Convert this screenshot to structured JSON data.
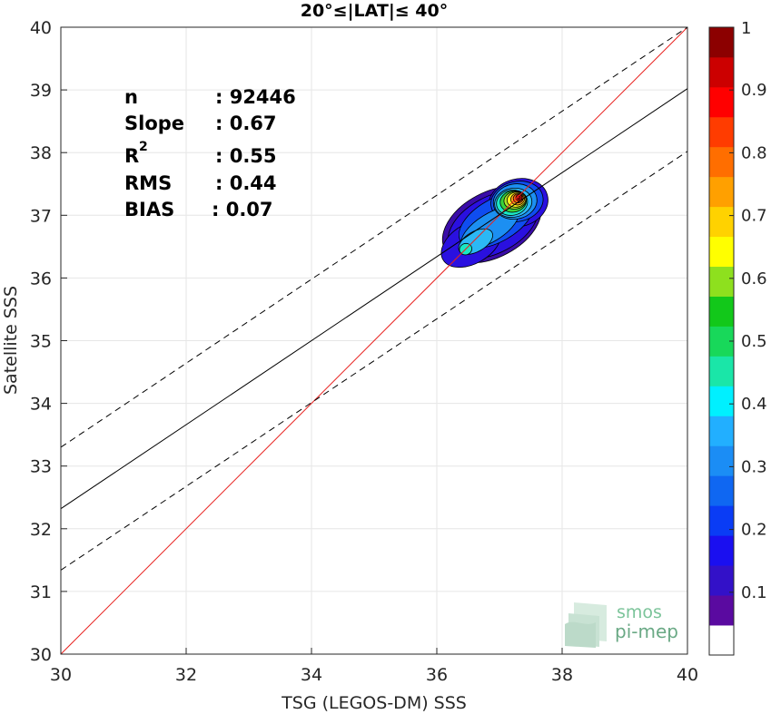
{
  "chart_data": {
    "type": "heatmap",
    "title": "20°≤|LAT|≤ 40°",
    "xlabel": "TSG (LEGOS-DM) SSS",
    "ylabel": "Satellite SSS",
    "xlim": [
      30,
      40
    ],
    "ylim": [
      30,
      40
    ],
    "xticks": [
      "30",
      "32",
      "34",
      "36",
      "38",
      "40"
    ],
    "yticks": [
      "30",
      "31",
      "32",
      "33",
      "34",
      "35",
      "36",
      "37",
      "38",
      "39",
      "40"
    ],
    "grid": true,
    "stats": [
      {
        "label": "n",
        "value": ": 92446"
      },
      {
        "label": "Slope",
        "value": ": 0.67"
      },
      {
        "label": "R",
        "sup": "2",
        "value": ": 0.55"
      },
      {
        "label": "RMS",
        "value": ": 0.44"
      },
      {
        "label": "BIAS",
        "value": ": 0.07"
      }
    ],
    "lines": [
      {
        "name": "one-to-one",
        "color": "#e8201e",
        "style": "solid",
        "points": [
          [
            30,
            30
          ],
          [
            40,
            40
          ]
        ]
      },
      {
        "name": "regression fit",
        "color": "#000000",
        "style": "solid",
        "points": [
          [
            30,
            32.32
          ],
          [
            40,
            39.02
          ]
        ]
      },
      {
        "name": "upper bound",
        "color": "#000000",
        "style": "dashed",
        "points": [
          [
            30,
            33.3
          ],
          [
            40,
            40
          ]
        ]
      },
      {
        "name": "lower bound",
        "color": "#000000",
        "style": "dashed",
        "points": [
          [
            30,
            31.34
          ],
          [
            40,
            38.02
          ]
        ]
      }
    ],
    "density_contours": [
      {
        "level": 0.05,
        "color": "#3a0ca8",
        "ellipses": [
          [
            36.88,
            36.85,
            0.85,
            0.52,
            28
          ]
        ]
      },
      {
        "level": 0.1,
        "color": "#2a10e0",
        "ellipses": [
          [
            36.9,
            36.85,
            0.78,
            0.45,
            28
          ],
          [
            36.55,
            36.55,
            0.52,
            0.32,
            30
          ],
          [
            37.3,
            37.2,
            0.48,
            0.38,
            15
          ]
        ]
      },
      {
        "level": 0.2,
        "color": "#0f4df0",
        "ellipses": [
          [
            36.95,
            36.92,
            0.66,
            0.34,
            30
          ],
          [
            37.28,
            37.22,
            0.42,
            0.32,
            12
          ]
        ]
      },
      {
        "level": 0.25,
        "color": "#1c8ff2",
        "ellipses": [
          [
            36.85,
            36.8,
            0.52,
            0.22,
            32
          ],
          [
            37.25,
            37.22,
            0.35,
            0.28,
            10
          ]
        ]
      },
      {
        "level": 0.35,
        "color": "#2cb8f5",
        "ellipses": [
          [
            36.62,
            36.58,
            0.3,
            0.16,
            30
          ],
          [
            37.22,
            37.2,
            0.3,
            0.23,
            10
          ]
        ]
      },
      {
        "level": 0.4,
        "color": "#1ae7c4",
        "ellipses": [
          [
            36.46,
            36.46,
            0.1,
            0.09,
            20
          ],
          [
            37.2,
            37.2,
            0.25,
            0.2,
            10
          ]
        ]
      },
      {
        "level": 0.55,
        "color": "#39d23a",
        "ellipses": [
          [
            37.22,
            37.22,
            0.21,
            0.17,
            10
          ]
        ]
      },
      {
        "level": 0.6,
        "color": "#a8e42a",
        "ellipses": [
          [
            37.25,
            37.24,
            0.18,
            0.14,
            10
          ]
        ]
      },
      {
        "level": 0.65,
        "color": "#fbf21c",
        "ellipses": [
          [
            37.27,
            37.25,
            0.15,
            0.12,
            10
          ]
        ]
      },
      {
        "level": 0.75,
        "color": "#ffa416",
        "ellipses": [
          [
            37.29,
            37.26,
            0.11,
            0.095,
            10
          ]
        ]
      },
      {
        "level": 0.8,
        "color": "#ff6410",
        "ellipses": [
          [
            37.3,
            37.27,
            0.08,
            0.072,
            10
          ]
        ]
      },
      {
        "level": 0.9,
        "color": "#e41010",
        "ellipses": [
          [
            37.31,
            37.28,
            0.05,
            0.05,
            10
          ]
        ]
      },
      {
        "level": 0.95,
        "color": "#b80a0a",
        "ellipses": [
          [
            37.31,
            37.28,
            0.022,
            0.025,
            10
          ]
        ]
      }
    ],
    "colorbar": {
      "min": 0,
      "max": 1,
      "ticks": [
        "0.1",
        "0.2",
        "0.3",
        "0.4",
        "0.5",
        "0.6",
        "0.7",
        "0.8",
        "0.9",
        "1"
      ],
      "tick_values": [
        0.1,
        0.2,
        0.3,
        0.4,
        0.5,
        0.6,
        0.7,
        0.8,
        0.9,
        1
      ],
      "colors": [
        "#ffffff",
        "#5a0aa0",
        "#3311c8",
        "#1a0ff0",
        "#0a3cf5",
        "#0f67f2",
        "#1b8df5",
        "#22afff",
        "#00f0ff",
        "#1ae6a8",
        "#18d85a",
        "#12c81a",
        "#8ee01e",
        "#ffff00",
        "#ffd200",
        "#ffa000",
        "#ff6e00",
        "#ff3c00",
        "#ff0000",
        "#cc0000",
        "#8c0000"
      ]
    }
  },
  "watermark": {
    "line1": "smos",
    "line2": "pi-mep"
  }
}
